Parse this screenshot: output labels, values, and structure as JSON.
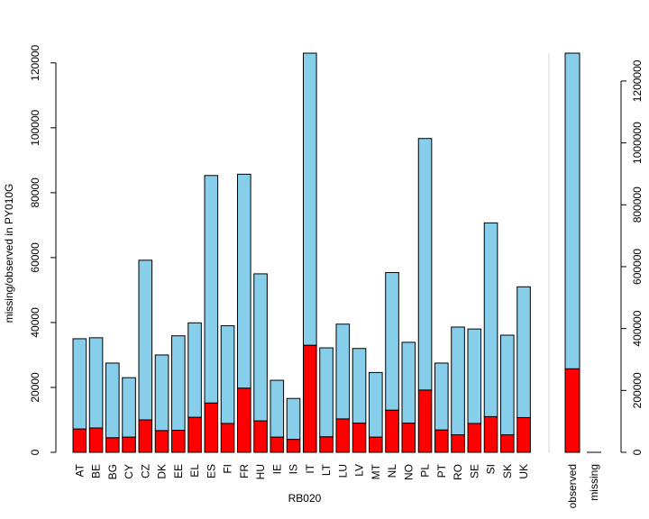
{
  "chart_data": [
    {
      "type": "bar",
      "stacked": true,
      "xlabel": "RB020",
      "ylabel": "missing/observed in PY010G",
      "ylim": [
        0,
        123000
      ],
      "yticks": [
        0,
        20000,
        40000,
        60000,
        80000,
        100000,
        120000
      ],
      "categories": [
        "AT",
        "BE",
        "BG",
        "CY",
        "CZ",
        "DK",
        "EE",
        "EL",
        "ES",
        "FI",
        "FR",
        "HU",
        "IE",
        "IS",
        "IT",
        "LT",
        "LU",
        "LV",
        "MT",
        "NL",
        "NO",
        "PL",
        "PT",
        "RO",
        "SE",
        "SI",
        "SK",
        "UK"
      ],
      "series": [
        {
          "color": "#ff0000",
          "values": [
            7200,
            7500,
            4500,
            4700,
            10000,
            6700,
            6800,
            10800,
            15200,
            8900,
            19800,
            9700,
            4700,
            4000,
            33000,
            4800,
            10300,
            9000,
            4700,
            13000,
            9000,
            19200,
            6900,
            5400,
            8900,
            11000,
            5400,
            10700
          ]
        },
        {
          "color": "#87ceeb",
          "values": [
            27800,
            27800,
            23000,
            18300,
            49200,
            23300,
            29100,
            29100,
            70100,
            30100,
            65900,
            45300,
            17500,
            12600,
            90000,
            27400,
            29200,
            23000,
            19900,
            42400,
            24900,
            77500,
            20600,
            33200,
            29100,
            59700,
            30700,
            40300
          ]
        }
      ]
    },
    {
      "type": "bar",
      "stacked": true,
      "ylim": [
        0,
        1290000
      ],
      "yticks": [
        0,
        200000,
        400000,
        600000,
        800000,
        1000000,
        1200000
      ],
      "categories": [
        "observed",
        "missing"
      ],
      "series": [
        {
          "color": "#ff0000",
          "values": [
            270000,
            0
          ]
        },
        {
          "color": "#87ceeb",
          "values": [
            1020000,
            0
          ]
        }
      ]
    }
  ]
}
